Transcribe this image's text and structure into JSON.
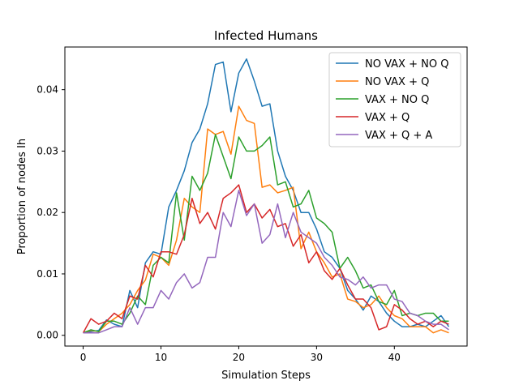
{
  "chart_data": {
    "type": "line",
    "title": "Infected Humans",
    "xlabel": "Simulation Steps",
    "ylabel": "Proportion of nodes Ih",
    "xlim": [
      -2.35,
      49.35
    ],
    "ylim": [
      -0.00175,
      0.04695
    ],
    "xticks": [
      0,
      10,
      20,
      30,
      40
    ],
    "yticks": [
      0.0,
      0.01,
      0.02,
      0.03,
      0.04
    ],
    "ytick_labels": [
      "0.00",
      "0.01",
      "0.02",
      "0.03",
      "0.04"
    ],
    "grid": false,
    "legend_position": "top-right",
    "series": [
      {
        "name": "NO VAX + NO Q",
        "color": "#1f77b4",
        "x": [
          0,
          1,
          2,
          3,
          4,
          5,
          6,
          7,
          8,
          9,
          10,
          11,
          12,
          13,
          14,
          15,
          16,
          17,
          18,
          19,
          20,
          21,
          22,
          23,
          24,
          25,
          26,
          27,
          28,
          29,
          30,
          31,
          32,
          33,
          34,
          35,
          36,
          37,
          38,
          39,
          40,
          41,
          42,
          43,
          44,
          45,
          46,
          47
        ],
        "values": [
          0.0004,
          0.0006,
          0.0008,
          0.0025,
          0.0018,
          0.0014,
          0.0073,
          0.0045,
          0.0118,
          0.0136,
          0.0132,
          0.0209,
          0.0236,
          0.0268,
          0.0314,
          0.0336,
          0.0377,
          0.0441,
          0.0445,
          0.0364,
          0.0427,
          0.045,
          0.0414,
          0.0373,
          0.0377,
          0.03,
          0.0259,
          0.0236,
          0.02,
          0.02,
          0.0173,
          0.0136,
          0.0127,
          0.0109,
          0.0073,
          0.0059,
          0.0041,
          0.0064,
          0.0055,
          0.0036,
          0.0023,
          0.0014,
          0.0014,
          0.0018,
          0.0014,
          0.0023,
          0.0032,
          0.0014
        ]
      },
      {
        "name": "NO VAX + Q",
        "color": "#ff7f0e",
        "x": [
          0,
          1,
          2,
          3,
          4,
          5,
          6,
          7,
          8,
          9,
          10,
          11,
          12,
          13,
          14,
          15,
          16,
          17,
          18,
          19,
          20,
          21,
          22,
          23,
          24,
          25,
          26,
          27,
          28,
          29,
          30,
          31,
          32,
          33,
          34,
          35,
          36,
          37,
          38,
          39,
          40,
          41,
          42,
          43,
          44,
          45,
          46,
          47
        ],
        "values": [
          0.0004,
          0.0008,
          0.0006,
          0.0018,
          0.0027,
          0.0036,
          0.005,
          0.0073,
          0.009,
          0.0132,
          0.0127,
          0.0114,
          0.0155,
          0.0223,
          0.0209,
          0.02,
          0.0336,
          0.0327,
          0.0332,
          0.0295,
          0.0373,
          0.035,
          0.0345,
          0.0241,
          0.0245,
          0.0232,
          0.0236,
          0.0241,
          0.0141,
          0.0168,
          0.0136,
          0.0118,
          0.0095,
          0.01,
          0.0059,
          0.0055,
          0.0045,
          0.005,
          0.0064,
          0.0045,
          0.0032,
          0.0027,
          0.0014,
          0.0014,
          0.0014,
          0.0004,
          0.0009,
          0.0004
        ]
      },
      {
        "name": "VAX + NO Q",
        "color": "#2ca02c",
        "x": [
          0,
          1,
          2,
          3,
          4,
          5,
          6,
          7,
          8,
          9,
          10,
          11,
          12,
          13,
          14,
          15,
          16,
          17,
          18,
          19,
          20,
          21,
          22,
          23,
          24,
          25,
          26,
          27,
          28,
          29,
          30,
          31,
          32,
          33,
          34,
          35,
          36,
          37,
          38,
          39,
          40,
          41,
          42,
          43,
          44,
          45,
          46,
          47
        ],
        "values": [
          0.0004,
          0.0009,
          0.0006,
          0.0023,
          0.0023,
          0.0018,
          0.0036,
          0.0064,
          0.005,
          0.0114,
          0.0127,
          0.0118,
          0.0232,
          0.0155,
          0.0259,
          0.0236,
          0.0264,
          0.0327,
          0.0291,
          0.0255,
          0.0323,
          0.03,
          0.03,
          0.0309,
          0.0323,
          0.0245,
          0.025,
          0.0209,
          0.0214,
          0.0236,
          0.0191,
          0.0182,
          0.0168,
          0.0109,
          0.0127,
          0.0105,
          0.0077,
          0.0082,
          0.0055,
          0.005,
          0.0073,
          0.0032,
          0.0036,
          0.0032,
          0.0036,
          0.0036,
          0.0023,
          0.0023
        ]
      },
      {
        "name": "VAX + Q",
        "color": "#d62728",
        "x": [
          0,
          1,
          2,
          3,
          4,
          5,
          6,
          7,
          8,
          9,
          10,
          11,
          12,
          13,
          14,
          15,
          16,
          17,
          18,
          19,
          20,
          21,
          22,
          23,
          24,
          25,
          26,
          27,
          28,
          29,
          30,
          31,
          32,
          33,
          34,
          35,
          36,
          37,
          38,
          39,
          40,
          41,
          42,
          43,
          44,
          45,
          46,
          47
        ],
        "values": [
          0.0004,
          0.0027,
          0.0018,
          0.0023,
          0.0036,
          0.0027,
          0.0064,
          0.0059,
          0.0114,
          0.0095,
          0.0136,
          0.0136,
          0.0132,
          0.0164,
          0.0223,
          0.0182,
          0.02,
          0.0173,
          0.0223,
          0.0232,
          0.0245,
          0.02,
          0.0214,
          0.0191,
          0.0205,
          0.0177,
          0.0182,
          0.0145,
          0.0164,
          0.0118,
          0.0136,
          0.0105,
          0.0091,
          0.0109,
          0.0082,
          0.0059,
          0.0059,
          0.0045,
          0.0009,
          0.0014,
          0.005,
          0.0041,
          0.0027,
          0.0018,
          0.0023,
          0.0014,
          0.0023,
          0.0018
        ]
      },
      {
        "name": "VAX + Q + A",
        "color": "#9467bd",
        "x": [
          0,
          1,
          2,
          3,
          4,
          5,
          6,
          7,
          8,
          9,
          10,
          11,
          12,
          13,
          14,
          15,
          16,
          17,
          18,
          19,
          20,
          21,
          22,
          23,
          24,
          25,
          26,
          27,
          28,
          29,
          30,
          31,
          32,
          33,
          34,
          35,
          36,
          37,
          38,
          39,
          40,
          41,
          42,
          43,
          44,
          45,
          46,
          47
        ],
        "values": [
          0.0004,
          0.0004,
          0.0004,
          0.0009,
          0.0014,
          0.0014,
          0.0045,
          0.0018,
          0.0045,
          0.0045,
          0.0073,
          0.0059,
          0.0086,
          0.01,
          0.0077,
          0.0086,
          0.0127,
          0.0127,
          0.02,
          0.0177,
          0.0236,
          0.0195,
          0.0214,
          0.015,
          0.0164,
          0.0214,
          0.0159,
          0.02,
          0.0168,
          0.0159,
          0.015,
          0.0127,
          0.0114,
          0.0095,
          0.0091,
          0.0082,
          0.0095,
          0.0077,
          0.0082,
          0.0082,
          0.0059,
          0.0055,
          0.0036,
          0.0032,
          0.0023,
          0.0018,
          0.0018,
          0.0009
        ]
      }
    ]
  }
}
